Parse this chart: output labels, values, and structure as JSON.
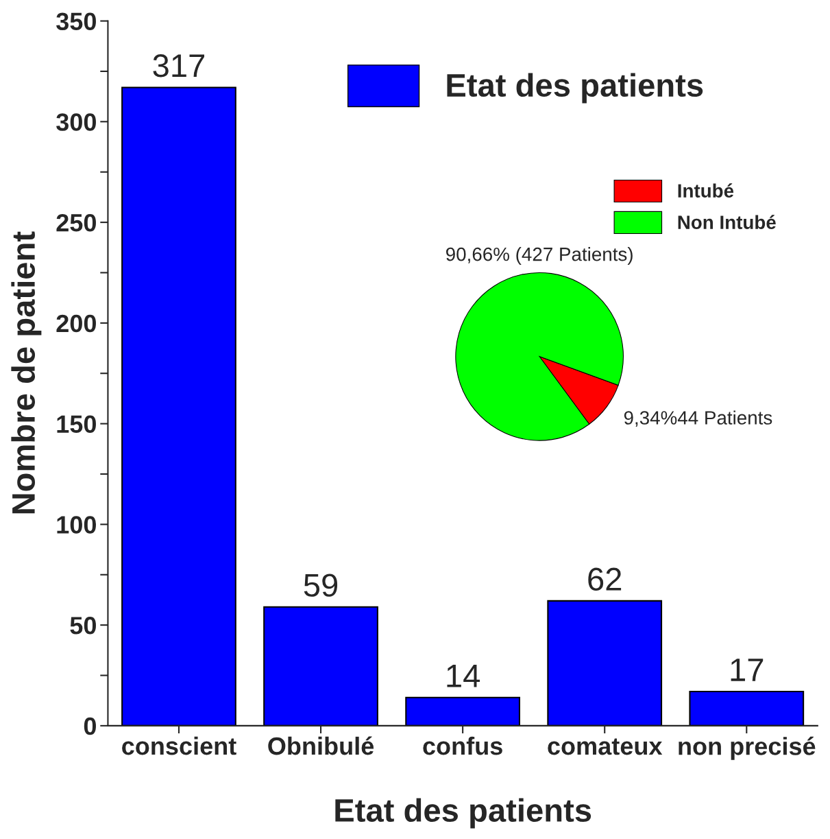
{
  "chart_data": [
    {
      "type": "bar",
      "xlabel": "Etat des patients",
      "ylabel": "Nombre de patient",
      "categories": [
        "conscient",
        "Obnibulé",
        "confus",
        "comateux",
        "non precisé"
      ],
      "series": [
        {
          "name": "Etat des patients",
          "color": "#0000ff",
          "values": [
            317,
            59,
            14,
            62,
            17
          ]
        }
      ],
      "ylim": [
        0,
        350
      ],
      "yticks": [
        0,
        {
          "value": 25,
          "label": null
        },
        50,
        {
          "value": 75,
          "label": null
        },
        100,
        {
          "value": 125,
          "label": null
        },
        150,
        {
          "value": 175,
          "label": null
        },
        200,
        {
          "value": 225,
          "label": null
        },
        250,
        {
          "value": 275,
          "label": null
        },
        300,
        {
          "value": 325,
          "label": null
        },
        350
      ],
      "data_labels": true,
      "grid": false,
      "legend": "top right"
    },
    {
      "type": "pie",
      "categories": [
        "Intubé",
        "Non Intubé"
      ],
      "values": [
        44,
        427
      ],
      "colors": [
        "#ff0000",
        "#00ff00"
      ],
      "value_labels": [
        "9,34%44 Patients",
        "90,66% (427 Patients)"
      ],
      "legend": "top right"
    }
  ]
}
